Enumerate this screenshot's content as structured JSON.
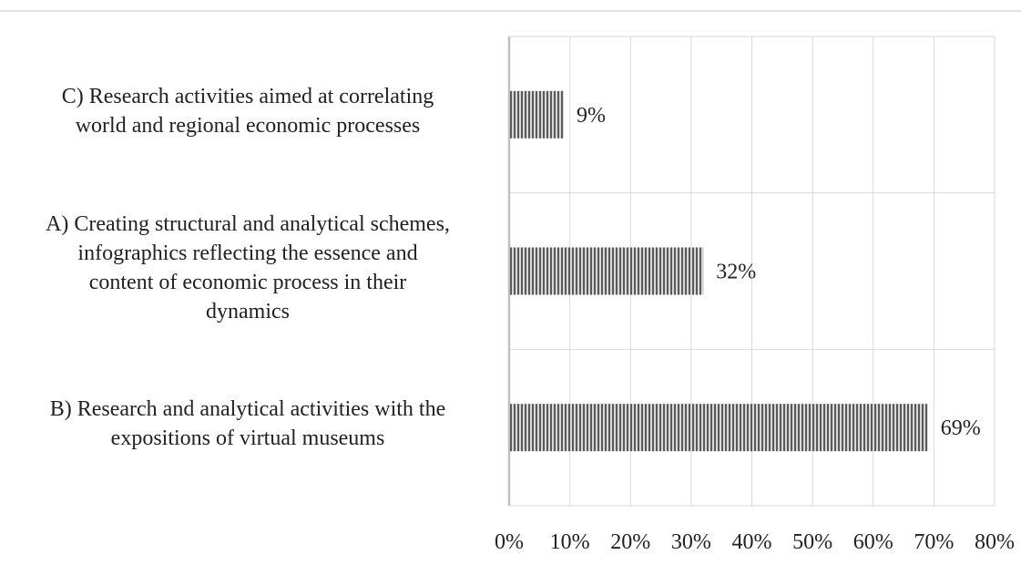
{
  "chart_data": {
    "type": "bar",
    "orientation": "horizontal",
    "categories": [
      [
        "C) Research activities aimed at correlating",
        "world and regional economic processes"
      ],
      [
        "A) Creating structural and analytical schemes,",
        "infographics reflecting the essence and",
        "content of economic process in their",
        "dynamics"
      ],
      [
        "B) Research and analytical activities with the",
        "expositions of virtual museums"
      ]
    ],
    "values": [
      9,
      32,
      69
    ],
    "data_labels": [
      "9%",
      "32%",
      "69%"
    ],
    "xlim": [
      0,
      80
    ],
    "x_ticks": [
      0,
      10,
      20,
      30,
      40,
      50,
      60,
      70,
      80
    ],
    "x_tick_labels": [
      "0%",
      "10%",
      "20%",
      "30%",
      "40%",
      "50%",
      "60%",
      "70%",
      "80%"
    ],
    "title": "",
    "xlabel": "",
    "ylabel": "",
    "grid": "vertical",
    "legend": "none",
    "colors": {
      "bar_stripe_dark": "#5a5a5a",
      "bar_stripe_light": "#d8d8d8",
      "grid": "#d9d9d9",
      "axis": "#bfbfbf",
      "top_rule": "#d9d9d9"
    }
  }
}
